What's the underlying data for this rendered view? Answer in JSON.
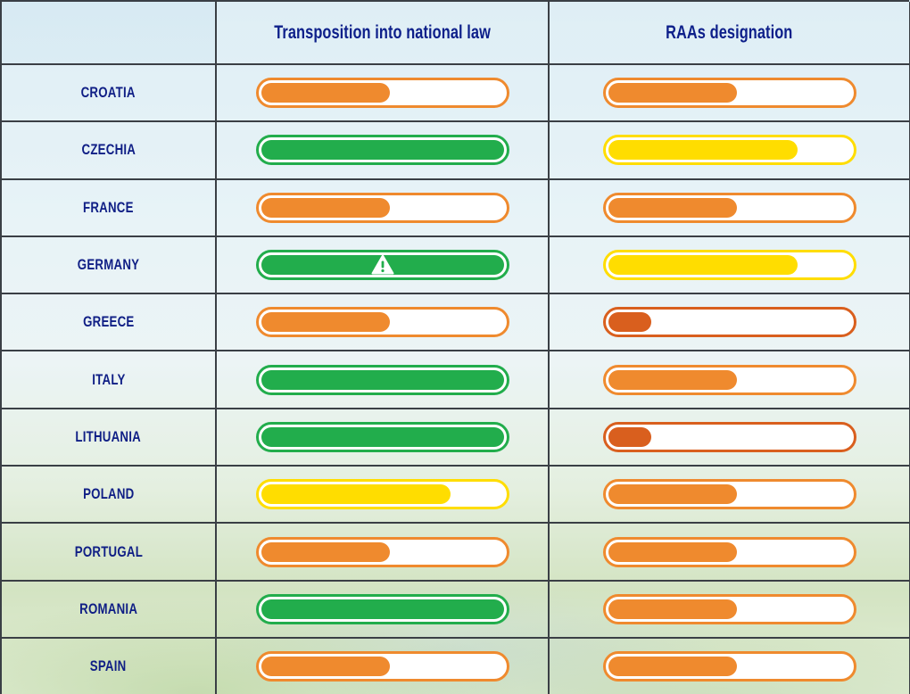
{
  "colors": {
    "green": "#22ad4c",
    "orange": "#ef8a2e",
    "yellow": "#ffdd00",
    "dark_orange": "#d95f1e",
    "header_text": "#0d1f8a"
  },
  "chart_data": {
    "type": "table",
    "columns": [
      "Transposition into national law",
      "RAAs designation"
    ],
    "rows": [
      {
        "country": "CROATIA",
        "transposition": {
          "level": 0.53,
          "color": "orange",
          "warning": false
        },
        "raas": {
          "level": 0.53,
          "color": "orange",
          "warning": false
        }
      },
      {
        "country": "CZECHIA",
        "transposition": {
          "level": 1.0,
          "color": "green",
          "warning": false
        },
        "raas": {
          "level": 0.78,
          "color": "yellow",
          "warning": false
        }
      },
      {
        "country": "FRANCE",
        "transposition": {
          "level": 0.53,
          "color": "orange",
          "warning": false
        },
        "raas": {
          "level": 0.53,
          "color": "orange",
          "warning": false
        }
      },
      {
        "country": "GERMANY",
        "transposition": {
          "level": 1.0,
          "color": "green",
          "warning": true
        },
        "raas": {
          "level": 0.78,
          "color": "yellow",
          "warning": false
        }
      },
      {
        "country": "GREECE",
        "transposition": {
          "level": 0.53,
          "color": "orange",
          "warning": false
        },
        "raas": {
          "level": 0.18,
          "color": "dark_orange",
          "warning": false
        }
      },
      {
        "country": "ITALY",
        "transposition": {
          "level": 1.0,
          "color": "green",
          "warning": false
        },
        "raas": {
          "level": 0.53,
          "color": "orange",
          "warning": false
        }
      },
      {
        "country": "LITHUANIA",
        "transposition": {
          "level": 1.0,
          "color": "green",
          "warning": false
        },
        "raas": {
          "level": 0.18,
          "color": "dark_orange",
          "warning": false
        }
      },
      {
        "country": "POLAND",
        "transposition": {
          "level": 0.78,
          "color": "yellow",
          "warning": false
        },
        "raas": {
          "level": 0.53,
          "color": "orange",
          "warning": false
        }
      },
      {
        "country": "PORTUGAL",
        "transposition": {
          "level": 0.53,
          "color": "orange",
          "warning": false
        },
        "raas": {
          "level": 0.53,
          "color": "orange",
          "warning": false
        }
      },
      {
        "country": "ROMANIA",
        "transposition": {
          "level": 1.0,
          "color": "green",
          "warning": false
        },
        "raas": {
          "level": 0.53,
          "color": "orange",
          "warning": false
        }
      },
      {
        "country": "SPAIN",
        "transposition": {
          "level": 0.53,
          "color": "orange",
          "warning": false
        },
        "raas": {
          "level": 0.53,
          "color": "orange",
          "warning": false
        }
      }
    ]
  }
}
